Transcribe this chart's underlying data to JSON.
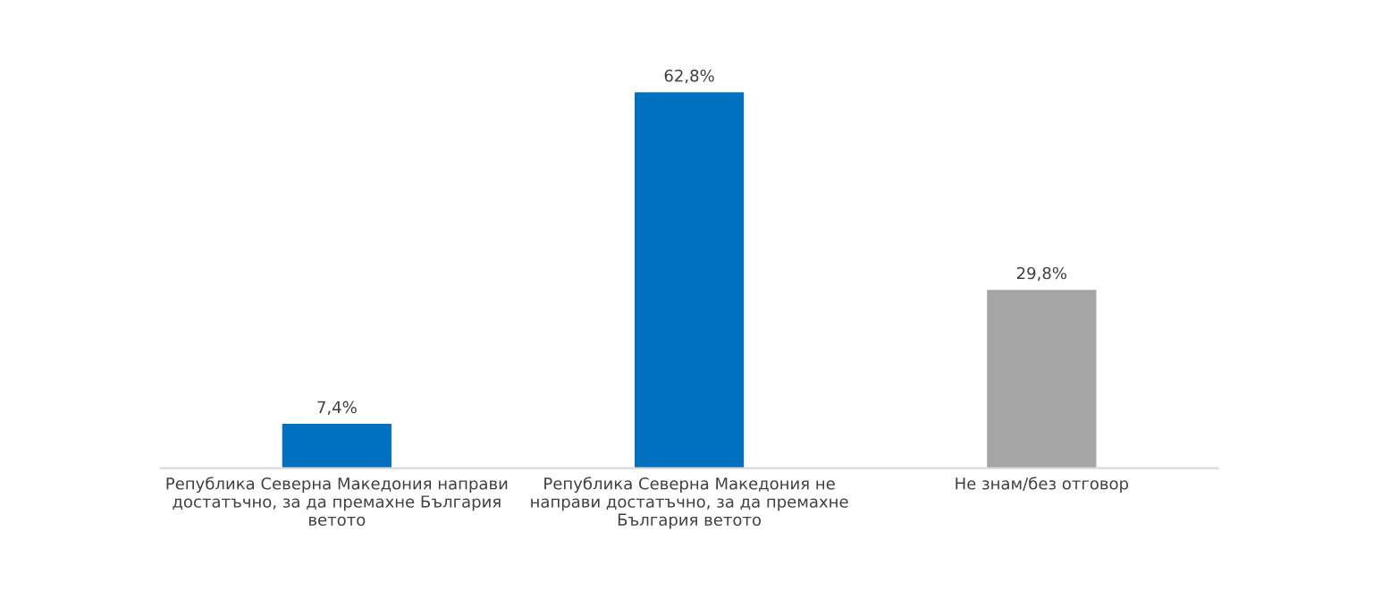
{
  "chart_data": {
    "type": "bar",
    "categories": [
      "Република Северна Македония направи\nдостатъчно, за да премахне България\nветото",
      "Република Северна Македония не\nнаправи достатъчно, за да премахне\nБългария ветото",
      "Не знам/без отговор"
    ],
    "values": [
      7.4,
      62.8,
      29.8
    ],
    "colors": [
      "#0070c0",
      "#0070c0",
      "#a5a5a5"
    ],
    "value_labels": [
      "7,4%",
      "62,8%",
      "29,8%"
    ],
    "grid": false,
    "legend": false
  }
}
